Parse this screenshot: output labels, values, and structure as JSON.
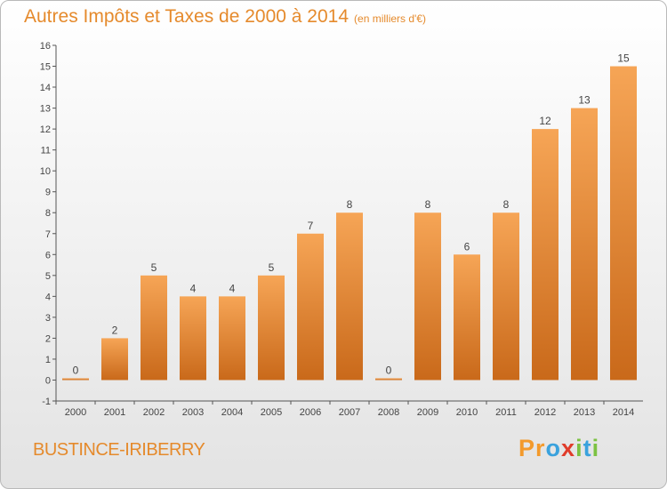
{
  "title": "Autres Impôts et Taxes de 2000 à 2014",
  "unit_note": "(en milliers d'€)",
  "place_name": "BUSTINCE-IRIBERRY",
  "brand": {
    "letters": [
      "P",
      "r",
      "o",
      "x",
      "i",
      "t",
      "i"
    ],
    "colors": [
      "#f39a2c",
      "#f39a2c",
      "#3aa2dd",
      "#e03c2a",
      "#7cc242",
      "#3aa2dd",
      "#7cc242"
    ]
  },
  "colors": {
    "bar_top": "#f6a556",
    "bar_bottom": "#c9691a",
    "accent": "#e58a2c",
    "axis": "#555555"
  },
  "chart_data": {
    "type": "bar",
    "categories": [
      "2000",
      "2001",
      "2002",
      "2003",
      "2004",
      "2005",
      "2006",
      "2007",
      "2008",
      "2009",
      "2010",
      "2011",
      "2012",
      "2013",
      "2014"
    ],
    "values": [
      0,
      2,
      5,
      4,
      4,
      5,
      7,
      8,
      0,
      8,
      6,
      8,
      12,
      13,
      15
    ],
    "ylim": [
      -1,
      16
    ],
    "yticks": [
      -1,
      0,
      1,
      2,
      3,
      4,
      5,
      6,
      7,
      8,
      9,
      10,
      11,
      12,
      13,
      14,
      15,
      16
    ],
    "grid": false,
    "data_labels": true
  }
}
